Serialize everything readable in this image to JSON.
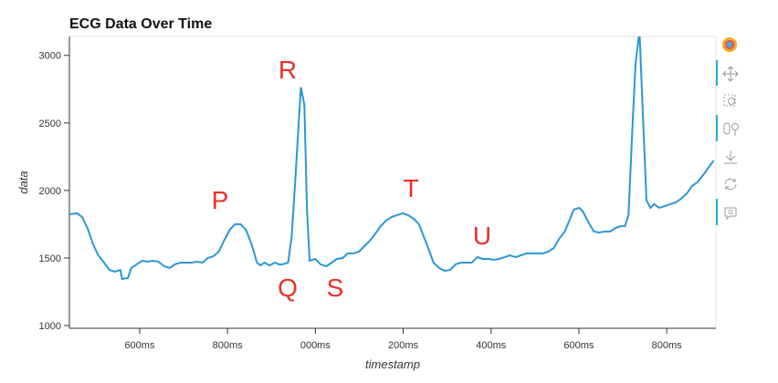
{
  "chart_data": {
    "type": "line",
    "title": "ECG Data Over Time",
    "x_label": "timestamp",
    "y_label": "data",
    "color": "#2b97d4",
    "grid": false,
    "xlim": [
      440,
      1912
    ],
    "ylim": [
      980,
      3140
    ],
    "xticks": [
      {
        "value": 600,
        "label": "600ms"
      },
      {
        "value": 800,
        "label": "800ms"
      },
      {
        "value": 1000,
        "label": "000ms"
      },
      {
        "value": 1200,
        "label": "200ms"
      },
      {
        "value": 1400,
        "label": "400ms"
      },
      {
        "value": 1600,
        "label": "600ms"
      },
      {
        "value": 1800,
        "label": "800ms"
      }
    ],
    "yticks": [
      1000,
      1500,
      2000,
      2500,
      3000
    ],
    "annotations": [
      "P",
      "Q",
      "R",
      "S",
      "T",
      "U"
    ],
    "x": [
      440,
      457,
      469,
      481,
      494,
      506,
      519,
      531,
      544,
      556,
      560,
      573,
      581,
      593,
      606,
      618,
      631,
      643,
      656,
      668,
      680,
      693,
      705,
      718,
      730,
      743,
      755,
      768,
      780,
      792,
      805,
      817,
      830,
      842,
      855,
      867,
      875,
      884,
      896,
      908,
      917,
      925,
      938,
      946,
      954,
      967,
      975,
      981,
      987,
      1000,
      1012,
      1025,
      1037,
      1049,
      1062,
      1074,
      1087,
      1099,
      1112,
      1124,
      1137,
      1149,
      1161,
      1174,
      1186,
      1199,
      1211,
      1224,
      1236,
      1244,
      1257,
      1269,
      1282,
      1294,
      1307,
      1319,
      1331,
      1344,
      1356,
      1369,
      1381,
      1394,
      1406,
      1418,
      1431,
      1443,
      1456,
      1468,
      1481,
      1493,
      1506,
      1518,
      1530,
      1543,
      1555,
      1568,
      1580,
      1588,
      1601,
      1609,
      1622,
      1634,
      1646,
      1659,
      1671,
      1684,
      1696,
      1705,
      1713,
      1721,
      1729,
      1738,
      1746,
      1754,
      1763,
      1771,
      1783,
      1796,
      1808,
      1821,
      1833,
      1846,
      1858,
      1870,
      1883,
      1895,
      1907
    ],
    "values": [
      1824,
      1831,
      1804,
      1723,
      1601,
      1520,
      1466,
      1412,
      1399,
      1412,
      1345,
      1351,
      1426,
      1453,
      1480,
      1473,
      1480,
      1473,
      1439,
      1426,
      1453,
      1466,
      1466,
      1466,
      1473,
      1466,
      1500,
      1514,
      1547,
      1628,
      1709,
      1750,
      1750,
      1709,
      1601,
      1466,
      1446,
      1466,
      1446,
      1466,
      1453,
      1453,
      1466,
      1655,
      2061,
      2764,
      2635,
      1858,
      1480,
      1493,
      1453,
      1439,
      1466,
      1493,
      1500,
      1534,
      1534,
      1547,
      1588,
      1628,
      1682,
      1737,
      1777,
      1804,
      1818,
      1831,
      1818,
      1791,
      1750,
      1682,
      1574,
      1466,
      1426,
      1405,
      1412,
      1453,
      1466,
      1466,
      1466,
      1507,
      1493,
      1493,
      1487,
      1493,
      1507,
      1520,
      1507,
      1520,
      1534,
      1534,
      1534,
      1534,
      1547,
      1574,
      1642,
      1696,
      1791,
      1858,
      1872,
      1845,
      1764,
      1696,
      1689,
      1696,
      1696,
      1723,
      1737,
      1737,
      1818,
      2399,
      2939,
      3180,
      2534,
      1926,
      1872,
      1899,
      1872,
      1885,
      1899,
      1912,
      1939,
      1980,
      2034,
      2061,
      2115,
      2169,
      2223
    ]
  }
}
